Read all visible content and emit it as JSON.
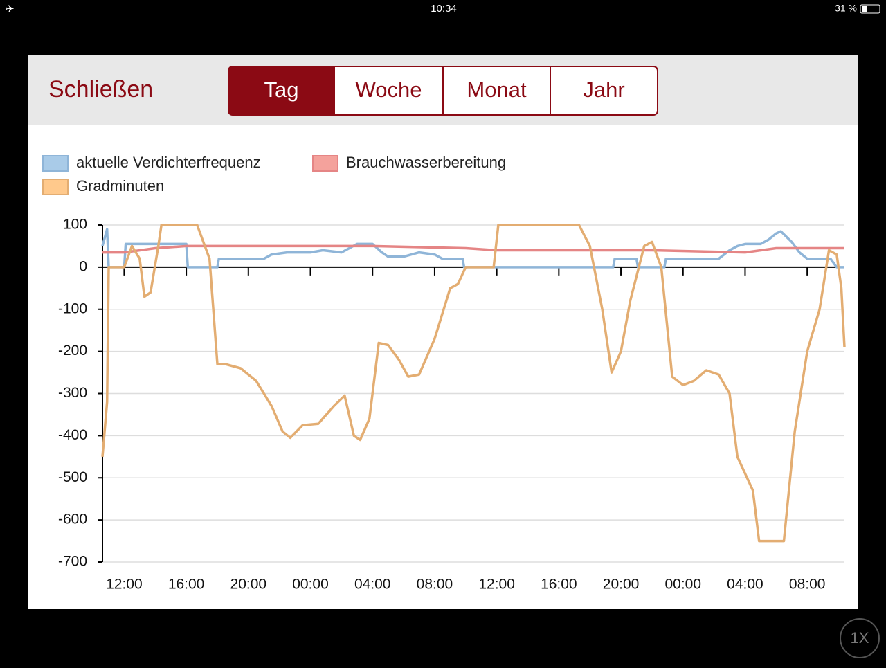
{
  "status_bar": {
    "time": "10:34",
    "battery": "31 %"
  },
  "header": {
    "close": "Schließen",
    "tabs": [
      "Tag",
      "Woche",
      "Monat",
      "Jahr"
    ],
    "active_tab": 0
  },
  "zoom_button": "1X",
  "chart_data": {
    "type": "line",
    "xlim": [
      10.6,
      58.4
    ],
    "xticks": [
      {
        "value": 12,
        "label": "12:00"
      },
      {
        "value": 16,
        "label": "16:00"
      },
      {
        "value": 20,
        "label": "20:00"
      },
      {
        "value": 24,
        "label": "00:00"
      },
      {
        "value": 28,
        "label": "04:00"
      },
      {
        "value": 32,
        "label": "08:00"
      },
      {
        "value": 36,
        "label": "12:00"
      },
      {
        "value": 40,
        "label": "16:00"
      },
      {
        "value": 44,
        "label": "20:00"
      },
      {
        "value": 48,
        "label": "00:00"
      },
      {
        "value": 52,
        "label": "04:00"
      },
      {
        "value": 56,
        "label": "08:00"
      }
    ],
    "ylim": [
      -700,
      100
    ],
    "yticks": [
      -700,
      -600,
      -500,
      -400,
      -300,
      -200,
      -100,
      0,
      100
    ],
    "grid": true,
    "series": [
      {
        "name": "aktuelle Verdichterfrequenz",
        "color": "#8fb5d8",
        "legend_color": "#a9cbe8",
        "x": [
          10.6,
          10.9,
          11.0,
          12.0,
          12.1,
          16.0,
          16.1,
          18.0,
          18.1,
          21.0,
          21.5,
          22.5,
          24,
          24.8,
          26,
          27,
          28,
          28.6,
          29,
          30,
          31,
          32,
          32.5,
          33.8,
          33.9,
          43.5,
          43.6,
          45,
          45.1,
          46.8,
          46.9,
          50.3,
          51,
          51.5,
          52,
          53,
          53.5,
          54,
          54.3,
          55,
          55.5,
          56,
          57.5,
          57.9,
          58.4
        ],
        "values": [
          50,
          90,
          0,
          0,
          55,
          55,
          0,
          0,
          20,
          20,
          30,
          35,
          35,
          40,
          35,
          55,
          55,
          35,
          25,
          25,
          35,
          30,
          20,
          20,
          0,
          0,
          20,
          20,
          0,
          0,
          20,
          20,
          40,
          50,
          55,
          55,
          65,
          80,
          85,
          60,
          35,
          20,
          20,
          0,
          0
        ]
      },
      {
        "name": "Brauchwasserbereitung",
        "color": "#e58585",
        "legend_color": "#f4a29c",
        "x": [
          10.6,
          12,
          14,
          16,
          20,
          28,
          34,
          36,
          46,
          52,
          54,
          58.4
        ],
        "values": [
          35,
          35,
          45,
          50,
          50,
          50,
          45,
          40,
          40,
          35,
          45,
          45
        ]
      },
      {
        "name": "Gradminuten",
        "color": "#e3ad72",
        "legend_color": "#ffc98c",
        "x": [
          10.6,
          10.9,
          11.0,
          12.0,
          12.5,
          13.0,
          13.3,
          13.7,
          14.2,
          14.4,
          16.7,
          17.5,
          18.0,
          18.5,
          19.5,
          20.5,
          21.5,
          22.2,
          22.7,
          23.5,
          24.5,
          25.5,
          26.2,
          26.8,
          27.2,
          27.8,
          28.4,
          29,
          29.7,
          30.3,
          31.0,
          32,
          33,
          33.5,
          34,
          35.8,
          36.1,
          41.3,
          42,
          42.8,
          43.4,
          44.0,
          44.6,
          45.5,
          46.0,
          46.6,
          47.3,
          48,
          48.7,
          49.5,
          50.3,
          51,
          51.5,
          52,
          52.5,
          52.9,
          54.5,
          55.2,
          56,
          56.8,
          57.4,
          57.9,
          58.2,
          58.4
        ],
        "values": [
          -450,
          -320,
          0,
          0,
          50,
          20,
          -70,
          -60,
          50,
          100,
          100,
          20,
          -230,
          -230,
          -240,
          -270,
          -330,
          -390,
          -405,
          -375,
          -372,
          -330,
          -305,
          -400,
          -410,
          -360,
          -180,
          -185,
          -220,
          -260,
          -255,
          -170,
          -50,
          -40,
          0,
          0,
          100,
          100,
          50,
          -100,
          -250,
          -200,
          -80,
          50,
          60,
          0,
          -260,
          -280,
          -270,
          -245,
          -255,
          -300,
          -450,
          -490,
          -530,
          -650,
          -650,
          -390,
          -200,
          -100,
          40,
          30,
          -50,
          -190
        ]
      }
    ]
  }
}
